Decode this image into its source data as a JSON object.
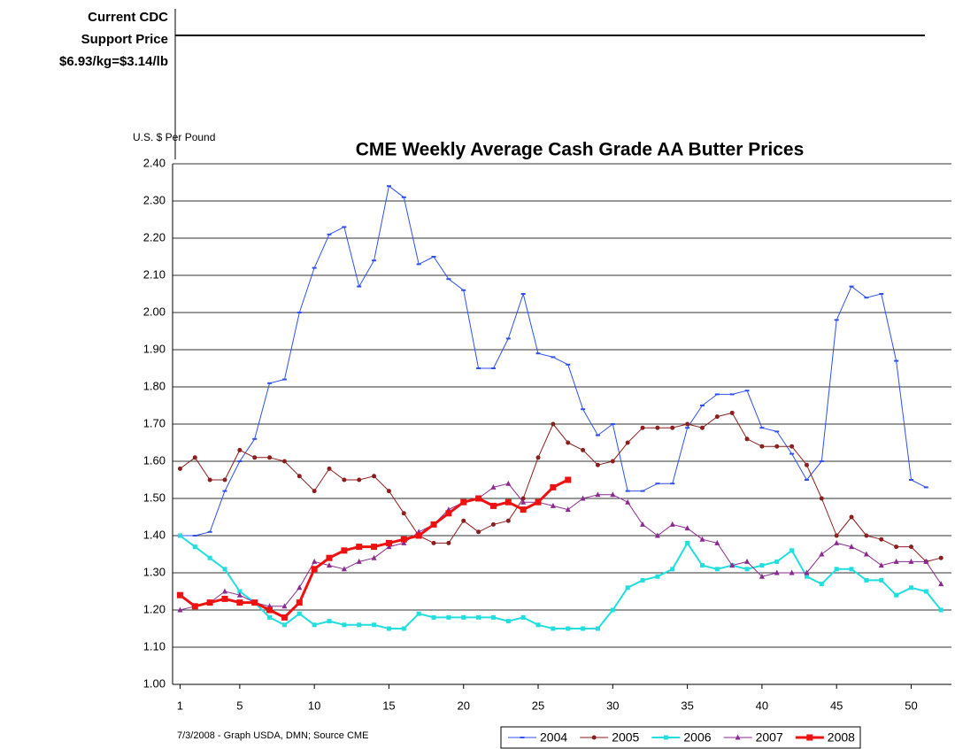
{
  "chart_data": {
    "type": "line",
    "title": "CME Weekly Average Cash Grade AA Butter Prices",
    "y_axis_label": "U.S. $ Per Pound",
    "annotation": [
      "Current CDC",
      "Support Price",
      "$6.93/kg=$3.14/lb"
    ],
    "source": "7/3/2008 - Graph USDA, DMN; Source CME",
    "x": [
      1,
      2,
      3,
      4,
      5,
      6,
      7,
      8,
      9,
      10,
      11,
      12,
      13,
      14,
      15,
      16,
      17,
      18,
      19,
      20,
      21,
      22,
      23,
      24,
      25,
      26,
      27,
      28,
      29,
      30,
      31,
      32,
      33,
      34,
      35,
      36,
      37,
      38,
      39,
      40,
      41,
      42,
      43,
      44,
      45,
      46,
      47,
      48,
      49,
      50,
      51,
      52
    ],
    "xlim": [
      0.5,
      52.7
    ],
    "xticks": [
      1,
      5,
      10,
      15,
      20,
      25,
      30,
      35,
      40,
      45,
      50
    ],
    "ylim": [
      1,
      2.4
    ],
    "yticks": [
      {
        "value": 1,
        "label": "1.00"
      },
      {
        "value": 1.1,
        "label": "1.10"
      },
      {
        "value": 1.2,
        "label": "1.20"
      },
      {
        "value": 1.3,
        "label": "1.30"
      },
      {
        "value": 1.4,
        "label": "1.40"
      },
      {
        "value": 1.5,
        "label": "1.50"
      },
      {
        "value": 1.6,
        "label": "1.60"
      },
      {
        "value": 1.7,
        "label": "1.70"
      },
      {
        "value": 1.8,
        "label": "1.80"
      },
      {
        "value": 1.9,
        "label": "1.90"
      },
      {
        "value": 2,
        "label": "2.00"
      },
      {
        "value": 2.1,
        "label": "2.10"
      },
      {
        "value": 2.2,
        "label": "2.20"
      },
      {
        "value": 2.3,
        "label": "2.30"
      },
      {
        "value": 2.4,
        "label": "2.40"
      }
    ],
    "grid": true,
    "legend": "bottom",
    "series": [
      {
        "name": "2004",
        "color": "#3050ee",
        "width": 1,
        "marker": "dash",
        "values": [
          1.4,
          1.4,
          1.41,
          1.52,
          1.6,
          1.66,
          1.81,
          1.82,
          2.0,
          2.12,
          2.21,
          2.23,
          2.07,
          2.14,
          2.34,
          2.31,
          2.13,
          2.15,
          2.09,
          2.06,
          1.85,
          1.85,
          1.93,
          2.05,
          1.89,
          1.88,
          1.86,
          1.74,
          1.67,
          1.7,
          1.52,
          1.52,
          1.54,
          1.54,
          1.69,
          1.75,
          1.78,
          1.78,
          1.79,
          1.69,
          1.68,
          1.62,
          1.55,
          1.6,
          1.98,
          2.07,
          2.04,
          2.05,
          1.87,
          1.55,
          1.53,
          null
        ]
      },
      {
        "name": "2005",
        "color": "#8b1e1e",
        "width": 1,
        "marker": "circle",
        "values": [
          1.58,
          1.61,
          1.55,
          1.55,
          1.63,
          1.61,
          1.61,
          1.6,
          1.56,
          1.52,
          1.58,
          1.55,
          1.55,
          1.56,
          1.52,
          1.46,
          1.4,
          1.38,
          1.38,
          1.44,
          1.41,
          1.43,
          1.44,
          1.5,
          1.61,
          1.7,
          1.65,
          1.63,
          1.59,
          1.6,
          1.65,
          1.69,
          1.69,
          1.69,
          1.7,
          1.69,
          1.72,
          1.73,
          1.66,
          1.64,
          1.64,
          1.64,
          1.59,
          1.5,
          1.4,
          1.45,
          1.4,
          1.39,
          1.37,
          1.37,
          1.33,
          1.34
        ]
      },
      {
        "name": "2006",
        "color": "#22dede",
        "width": 2,
        "marker": "square",
        "values": [
          1.4,
          1.37,
          1.34,
          1.31,
          1.25,
          1.22,
          1.18,
          1.16,
          1.19,
          1.16,
          1.17,
          1.16,
          1.16,
          1.16,
          1.15,
          1.15,
          1.19,
          1.18,
          1.18,
          1.18,
          1.18,
          1.18,
          1.17,
          1.18,
          1.16,
          1.15,
          1.15,
          1.15,
          1.15,
          1.2,
          1.26,
          1.28,
          1.29,
          1.31,
          1.38,
          1.32,
          1.31,
          1.32,
          1.31,
          1.32,
          1.33,
          1.36,
          1.29,
          1.27,
          1.31,
          1.31,
          1.28,
          1.28,
          1.24,
          1.26,
          1.25,
          1.2
        ]
      },
      {
        "name": "2007",
        "color": "#8a2a90",
        "width": 1,
        "marker": "triangle",
        "values": [
          1.2,
          1.21,
          1.22,
          1.25,
          1.24,
          1.22,
          1.21,
          1.21,
          1.26,
          1.33,
          1.32,
          1.31,
          1.33,
          1.34,
          1.37,
          1.38,
          1.41,
          1.43,
          1.47,
          1.49,
          1.5,
          1.53,
          1.54,
          1.49,
          1.49,
          1.48,
          1.47,
          1.5,
          1.51,
          1.51,
          1.49,
          1.43,
          1.4,
          1.43,
          1.42,
          1.39,
          1.38,
          1.32,
          1.33,
          1.29,
          1.3,
          1.3,
          1.3,
          1.35,
          1.38,
          1.37,
          1.35,
          1.32,
          1.33,
          1.33,
          1.33,
          1.27
        ]
      },
      {
        "name": "2008",
        "color": "#ee1111",
        "width": 3,
        "marker": "square",
        "values": [
          1.24,
          1.21,
          1.22,
          1.23,
          1.22,
          1.22,
          1.2,
          1.18,
          1.22,
          1.31,
          1.34,
          1.36,
          1.37,
          1.37,
          1.38,
          1.39,
          1.4,
          1.43,
          1.46,
          1.49,
          1.5,
          1.48,
          1.49,
          1.47,
          1.49,
          1.53,
          1.55,
          null,
          null,
          null,
          null,
          null,
          null,
          null,
          null,
          null,
          null,
          null,
          null,
          null,
          null,
          null,
          null,
          null,
          null,
          null,
          null,
          null,
          null,
          null,
          null,
          null
        ]
      }
    ]
  }
}
